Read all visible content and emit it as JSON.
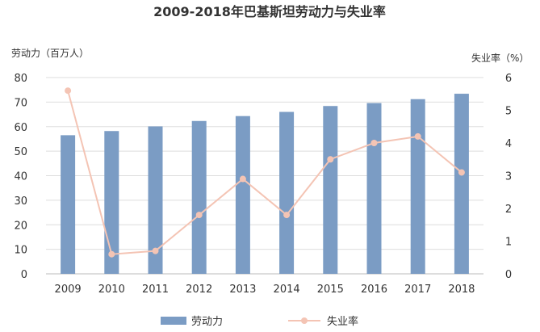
{
  "chart_data": {
    "type": "bar",
    "title": "2009-2018年巴基斯坦劳动力与失业率",
    "categories": [
      "2009",
      "2010",
      "2011",
      "2012",
      "2013",
      "2014",
      "2015",
      "2016",
      "2017",
      "2018"
    ],
    "series": [
      {
        "name": "劳动力",
        "type": "bar",
        "axis": "left",
        "color": "#7b9cc4",
        "values": [
          56.5,
          58.2,
          60.1,
          62.3,
          64.3,
          66.0,
          68.4,
          69.6,
          71.2,
          73.4
        ]
      },
      {
        "name": "失业率",
        "type": "line",
        "axis": "right",
        "color": "#f4c4b4",
        "values": [
          5.6,
          0.6,
          0.7,
          1.8,
          2.9,
          1.8,
          3.5,
          4.0,
          4.2,
          3.1
        ]
      }
    ],
    "y_left": {
      "label": "劳动力（百万人）",
      "min": 0,
      "max": 80,
      "ticks": [
        0,
        10,
        20,
        30,
        40,
        50,
        60,
        70,
        80
      ]
    },
    "y_right": {
      "label": "失业率（%）",
      "min": 0,
      "max": 6,
      "ticks": [
        0,
        1,
        2,
        3,
        4,
        5,
        6
      ]
    },
    "grid": true,
    "legend": "bottom"
  }
}
